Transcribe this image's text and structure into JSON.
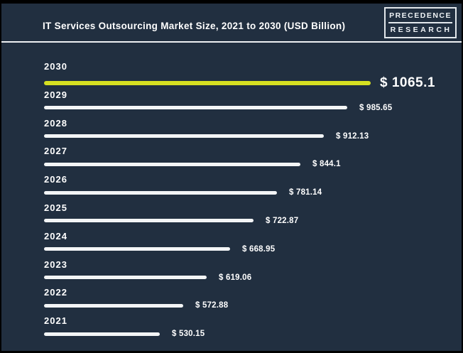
{
  "header": {
    "title": "IT Services Outsourcing Market Size, 2021 to 2030 (USD Billion)",
    "logo": {
      "line1": "PRECEDENCE",
      "line2": "RESEARCH"
    }
  },
  "colors": {
    "background": "#212f40",
    "frame_border": "#000000",
    "divider": "#eef1f3",
    "bar": "#f3f5f6",
    "bar_highlight": "#d6e021",
    "text": "#ffffff"
  },
  "chart_data": {
    "type": "bar",
    "orientation": "horizontal",
    "title": "IT Services Outsourcing Market Size, 2021 to 2030 (USD Billion)",
    "unit": "USD Billion",
    "categories": [
      "2030",
      "2029",
      "2028",
      "2027",
      "2026",
      "2025",
      "2024",
      "2023",
      "2022",
      "2021"
    ],
    "values": [
      1065.1,
      985.65,
      912.13,
      844.1,
      781.14,
      722.87,
      668.95,
      619.06,
      572.88,
      530.15
    ],
    "value_labels": [
      "$ 1065.1",
      "$ 985.65",
      "$ 912.13",
      "$ 844.1",
      "$ 781.14",
      "$ 722.87",
      "$ 668.95",
      "$ 619.06",
      "$ 572.88",
      "$ 530.15"
    ],
    "highlight_category": "2030",
    "legend": "none",
    "grid": false,
    "value_axis_visible": false
  }
}
